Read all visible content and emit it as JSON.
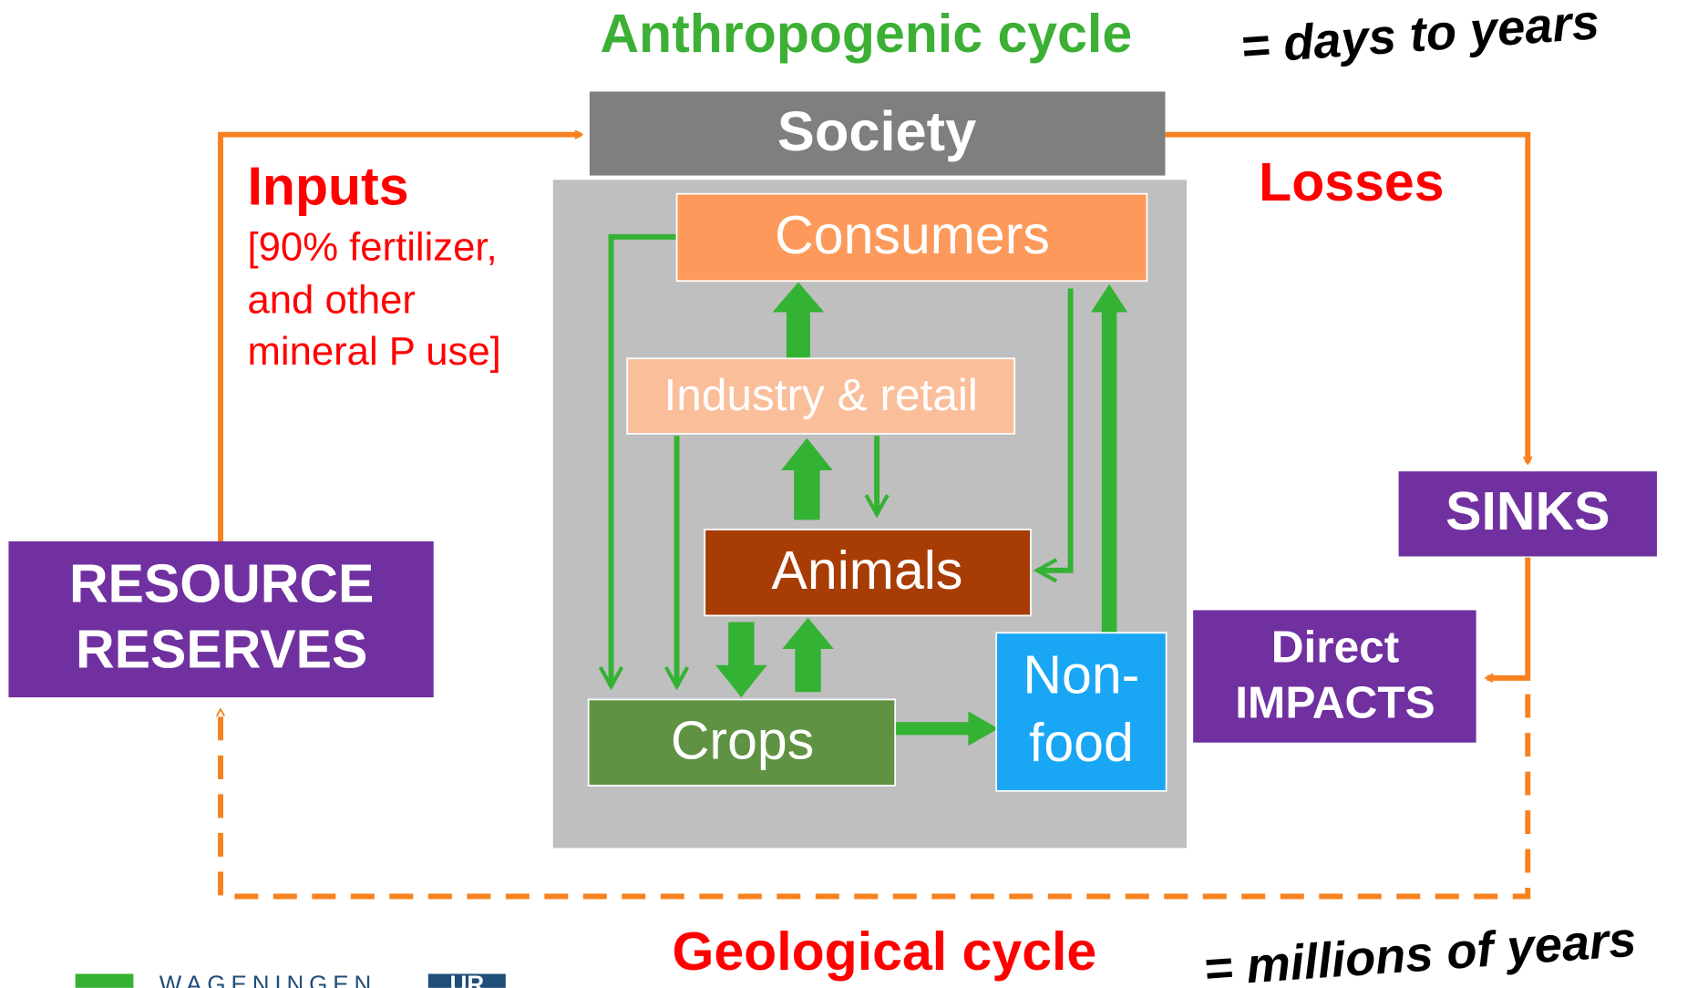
{
  "header": {
    "title": "Anthropogenic cycle",
    "timescale": "= days to years"
  },
  "nodes": [
    {
      "label": "Society"
    },
    {
      "label": "Consumers"
    },
    {
      "label": "Industry & retail"
    },
    {
      "label": "Animals"
    },
    {
      "label": "Crops"
    },
    {
      "label": "Non-food",
      "lines": [
        "Non-",
        "food"
      ]
    },
    {
      "label": "RESOURCE RESERVES",
      "lines": [
        "RESOURCE",
        "RESERVES"
      ]
    },
    {
      "label": "SINKS"
    },
    {
      "label": "Direct IMPACTS",
      "lines": [
        "Direct",
        "IMPACTS"
      ]
    }
  ],
  "inputs": {
    "title": "Inputs",
    "lines": [
      "[90% fertilizer,",
      "and other",
      "mineral P use]"
    ]
  },
  "losses": {
    "title": "Losses"
  },
  "footer": {
    "title": "Geological cycle",
    "timescale": "= millions of years"
  },
  "logo": {
    "name": "WAGENINGEN",
    "badge": "UR"
  }
}
